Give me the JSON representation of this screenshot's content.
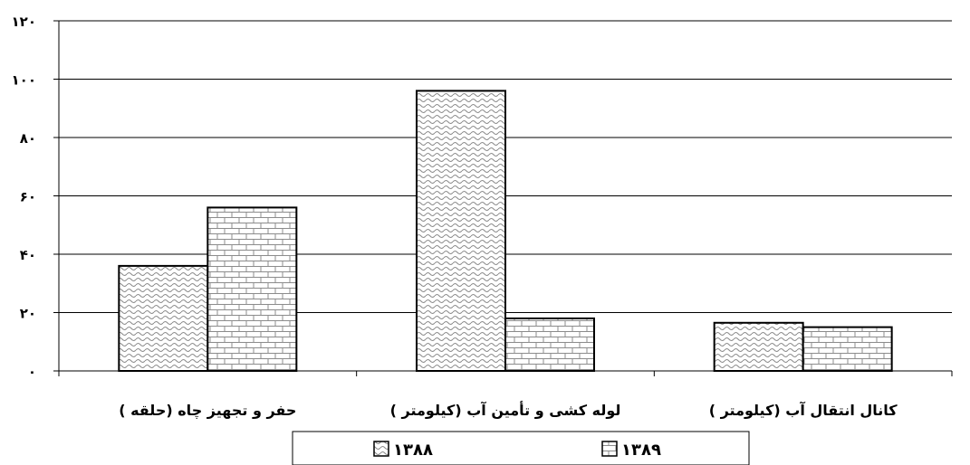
{
  "chart_data": {
    "type": "bar",
    "categories": [
      "حفر و تجهیز چاه (حلقه )",
      "لوله کشی و تأمین آب (کیلومتر )",
      "کانال انتقال آب (کیلومتر )"
    ],
    "series": [
      {
        "name": "۱۳۸۸",
        "values": [
          36,
          96,
          16.5
        ],
        "pattern": "wave"
      },
      {
        "name": "۱۳۸۹",
        "values": [
          56,
          18,
          15
        ],
        "pattern": "brick"
      }
    ],
    "y_ticks": [
      {
        "value": 0,
        "label": "۰"
      },
      {
        "value": 20,
        "label": "۲۰"
      },
      {
        "value": 40,
        "label": "۴۰"
      },
      {
        "value": 60,
        "label": "۶۰"
      },
      {
        "value": 80,
        "label": "۸۰"
      },
      {
        "value": 100,
        "label": "۱۰۰"
      },
      {
        "value": 120,
        "label": "۱۲۰"
      }
    ],
    "ylim": [
      0,
      120
    ],
    "grid": true,
    "legend_position": "bottom",
    "colors": {
      "bar_stroke": "#000000",
      "pattern": "#8c8c8c",
      "background": "#ffffff"
    }
  }
}
